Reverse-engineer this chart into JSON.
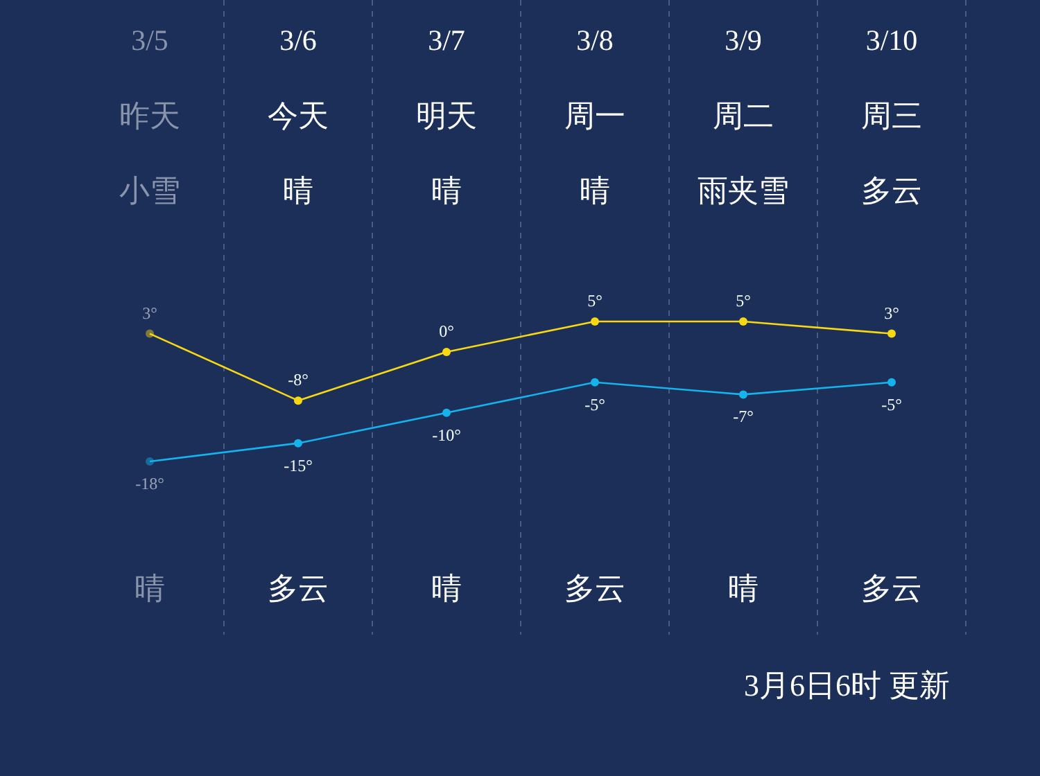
{
  "chart_data": {
    "type": "line",
    "categories": [
      "3/5",
      "3/6",
      "3/7",
      "3/8",
      "3/9",
      "3/10"
    ],
    "series": [
      {
        "color": "#f7d813",
        "values": [
          3,
          -8,
          0,
          5,
          5,
          3
        ],
        "value_labels": [
          "3°",
          "-8°",
          "0°",
          "5°",
          "5°",
          "3°"
        ]
      },
      {
        "color": "#16b2ec",
        "values": [
          -18,
          -15,
          -10,
          -5,
          -7,
          -5
        ],
        "value_labels": [
          "-18°",
          "-15°",
          "-10°",
          "-5°",
          "-7°",
          "-5°"
        ]
      }
    ],
    "marker": "circle",
    "grid": "x",
    "annotations": [
      "昨天",
      "今天",
      "明天",
      "周一",
      "周二",
      "周三",
      "小雪",
      "晴",
      "晴",
      "晴",
      "雨夹雪",
      "多云",
      "晴",
      "多云",
      "晴",
      "多云",
      "晴",
      "多云",
      "3月6日6时 更新"
    ]
  }
}
